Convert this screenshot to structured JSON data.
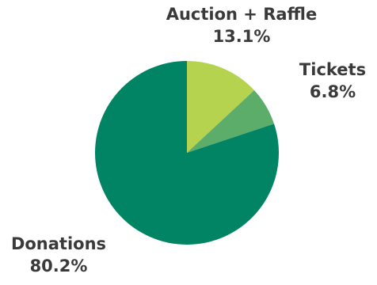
{
  "chart_data": {
    "type": "pie",
    "title": "",
    "slices": [
      {
        "label": "Auction + Raffle",
        "value": 13.1,
        "value_text": "13.1%",
        "color": "#b5d34f"
      },
      {
        "label": "Tickets",
        "value": 6.8,
        "value_text": "6.8%",
        "color": "#5cad6a"
      },
      {
        "label": "Donations",
        "value": 80.2,
        "value_text": "80.2%",
        "color": "#008463"
      }
    ],
    "start_angle": "12 o'clock",
    "direction": "clockwise",
    "legend": "none",
    "label_color": "#3a3a3a"
  }
}
